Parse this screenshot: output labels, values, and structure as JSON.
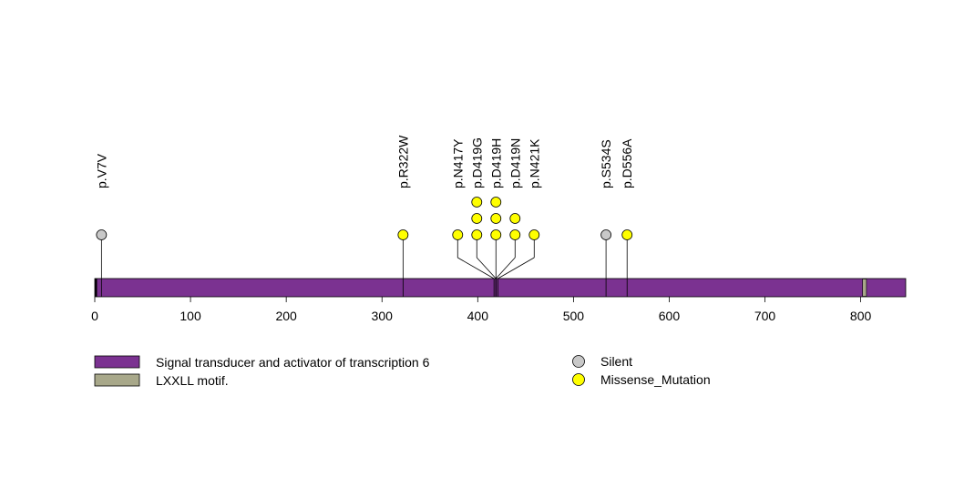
{
  "chart_data": {
    "type": "lollipop",
    "title": "",
    "xlabel": "",
    "ylabel": "",
    "xlim": [
      0,
      847
    ],
    "xticks": [
      0,
      100,
      200,
      300,
      400,
      500,
      600,
      700,
      800
    ],
    "protein": {
      "name": "Signal transducer and activator of transcription 6",
      "start": 1,
      "end": 847,
      "color": "#7b3291"
    },
    "domains": [
      {
        "name": "LXXLL motif.",
        "start": 802,
        "end": 806,
        "color": "#a8a88a"
      }
    ],
    "mutations": [
      {
        "label": "p.V7V",
        "position": 7,
        "type": "Silent",
        "count": 1
      },
      {
        "label": "p.R322W",
        "position": 322,
        "type": "Missense_Mutation",
        "count": 1
      },
      {
        "label": "p.N417Y",
        "position": 417,
        "type": "Missense_Mutation",
        "count": 1
      },
      {
        "label": "p.D419G",
        "position": 419,
        "type": "Missense_Mutation",
        "count": 3
      },
      {
        "label": "p.D419H",
        "position": 419,
        "type": "Missense_Mutation",
        "count": 3
      },
      {
        "label": "p.D419N",
        "position": 419,
        "type": "Missense_Mutation",
        "count": 2
      },
      {
        "label": "p.N421K",
        "position": 421,
        "type": "Missense_Mutation",
        "count": 1
      },
      {
        "label": "p.S534S",
        "position": 534,
        "type": "Silent",
        "count": 1
      },
      {
        "label": "p.D556A",
        "position": 556,
        "type": "Missense_Mutation",
        "count": 1
      }
    ],
    "mutation_types": [
      {
        "name": "Silent",
        "color": "#c8c8c8"
      },
      {
        "name": "Missense_Mutation",
        "color": "#ffff00"
      }
    ],
    "legend": {
      "placement": "bottom",
      "items": [
        {
          "label": "Signal transducer and activator of transcription 6",
          "kind": "domain",
          "color": "#7b3291"
        },
        {
          "label": "LXXLL motif.",
          "kind": "domain",
          "color": "#a8a88a"
        },
        {
          "label": "Silent",
          "kind": "mutation",
          "color": "#c8c8c8"
        },
        {
          "label": "Missense_Mutation",
          "kind": "mutation",
          "color": "#ffff00"
        }
      ]
    }
  }
}
